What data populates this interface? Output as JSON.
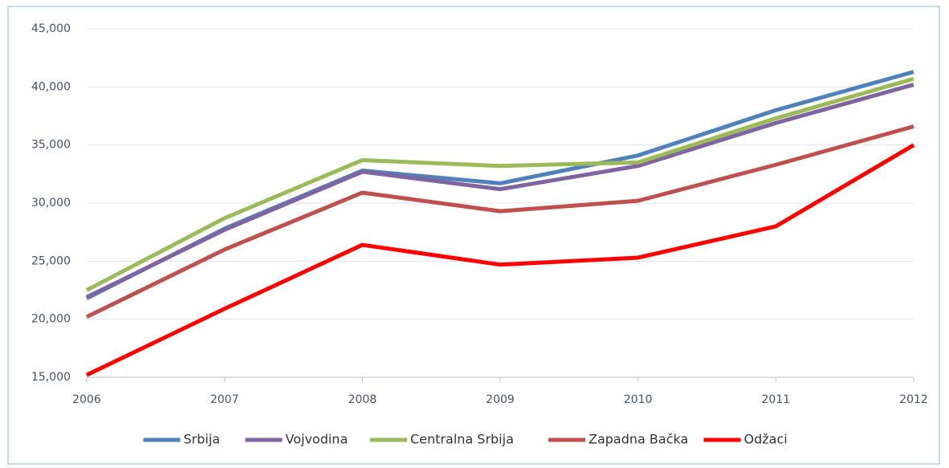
{
  "chart_data": {
    "type": "line",
    "categories": [
      "2006",
      "2007",
      "2008",
      "2009",
      "2010",
      "2011",
      "2012"
    ],
    "series": [
      {
        "name": "Srbija",
        "color": "#4f81bd",
        "values": [
          21800,
          27800,
          32800,
          31700,
          34100,
          38000,
          41300
        ]
      },
      {
        "name": "Vojvodina",
        "color": "#8064a2",
        "values": [
          21900,
          27700,
          32700,
          31200,
          33200,
          36900,
          40200
        ]
      },
      {
        "name": "Centralna Srbija",
        "color": "#9bbb59",
        "values": [
          22500,
          28700,
          33700,
          33200,
          33500,
          37300,
          40700
        ]
      },
      {
        "name": "Zapadna Bačka",
        "color": "#c0504d",
        "values": [
          20200,
          26000,
          30900,
          29300,
          30200,
          33300,
          36600
        ]
      },
      {
        "name": "Odžaci",
        "color": "#ff0000",
        "values": [
          15200,
          20900,
          26400,
          24700,
          25300,
          28000,
          35000
        ]
      }
    ],
    "ylim": [
      15000,
      45000
    ],
    "yticks": [
      {
        "value": 15000,
        "label": "15,000"
      },
      {
        "value": 20000,
        "label": "20,000"
      },
      {
        "value": 25000,
        "label": "25,000"
      },
      {
        "value": 30000,
        "label": "30,000"
      },
      {
        "value": 35000,
        "label": "35,000"
      },
      {
        "value": 40000,
        "label": "40,000"
      },
      {
        "value": 45000,
        "label": "45,000"
      }
    ],
    "grid": true,
    "legend": "bottom"
  }
}
